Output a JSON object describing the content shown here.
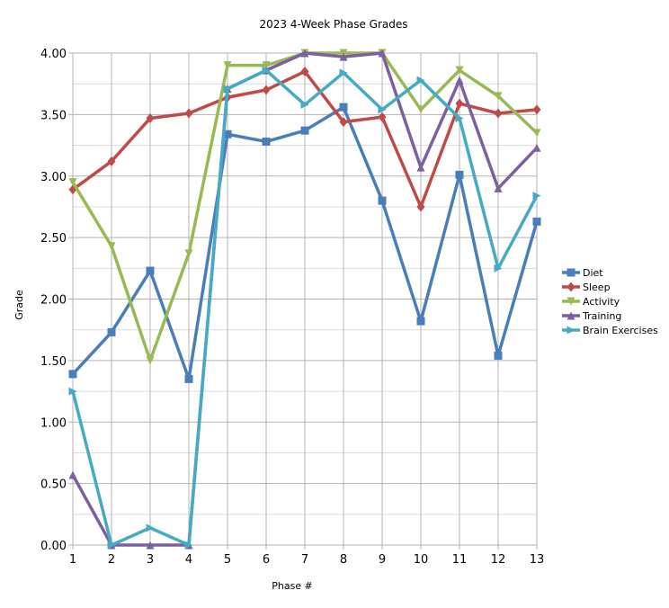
{
  "chart_data": {
    "type": "line",
    "title": "2023 4-Week Phase Grades",
    "xlabel": "Phase #",
    "ylabel": "Grade",
    "x": [
      1,
      2,
      3,
      4,
      5,
      6,
      7,
      8,
      9,
      10,
      11,
      12,
      13
    ],
    "xlim": [
      1,
      13
    ],
    "ylim": [
      0,
      4
    ],
    "y_ticks": [
      "0.00",
      "0.50",
      "1.00",
      "1.50",
      "2.00",
      "2.50",
      "3.00",
      "3.50",
      "4.00"
    ],
    "x_ticks": [
      "1",
      "2",
      "3",
      "4",
      "5",
      "6",
      "7",
      "8",
      "9",
      "10",
      "11",
      "12",
      "13"
    ],
    "grid": true,
    "legend_position": "right",
    "series": [
      {
        "name": "Diet",
        "color": "#4a7ebb",
        "marker": "square",
        "values": [
          1.39,
          1.73,
          2.23,
          1.35,
          3.34,
          3.28,
          3.37,
          3.56,
          2.8,
          1.82,
          3.01,
          1.54,
          2.63
        ]
      },
      {
        "name": "Sleep",
        "color": "#be4b48",
        "marker": "diamond",
        "values": [
          2.89,
          3.12,
          3.47,
          3.51,
          3.64,
          3.7,
          3.85,
          3.44,
          3.48,
          2.75,
          3.59,
          3.51,
          3.54
        ]
      },
      {
        "name": "Activity",
        "color": "#98b954",
        "marker": "triangle-down",
        "values": [
          2.95,
          2.43,
          1.5,
          2.37,
          3.9,
          3.9,
          4.0,
          4.0,
          4.0,
          3.54,
          3.86,
          3.65,
          3.35
        ]
      },
      {
        "name": "Training",
        "color": "#7d60a0",
        "marker": "triangle-up",
        "values": [
          0.57,
          0.0,
          0.0,
          0.0,
          3.71,
          3.86,
          4.0,
          3.97,
          4.0,
          3.07,
          3.78,
          2.9,
          3.23
        ]
      },
      {
        "name": "Brain Exercises",
        "color": "#46aac5",
        "marker": "triangle-right",
        "values": [
          1.25,
          0.0,
          0.14,
          0.0,
          3.71,
          3.86,
          3.58,
          3.84,
          3.54,
          3.78,
          3.47,
          2.25,
          2.84
        ]
      }
    ]
  }
}
